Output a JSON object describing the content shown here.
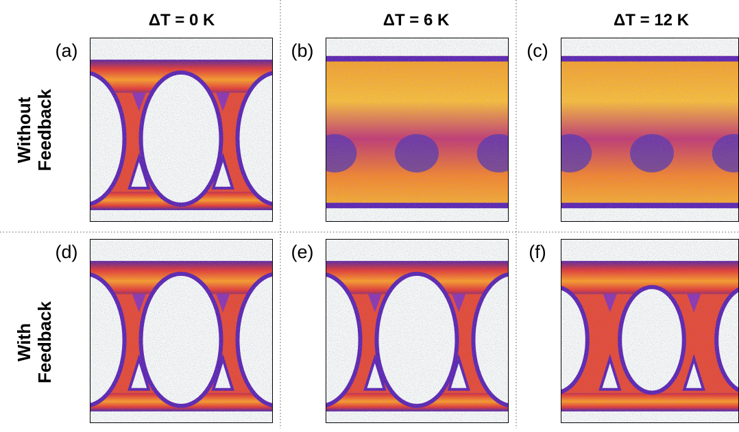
{
  "columns": [
    "ΔT = 0 K",
    "ΔT = 6 K",
    "ΔT = 12 K"
  ],
  "rows": [
    [
      "Without",
      "Feedback"
    ],
    [
      "With",
      "Feedback"
    ]
  ],
  "panels": [
    "(a)",
    "(b)",
    "(c)",
    "(d)",
    "(e)",
    "(f)"
  ]
}
